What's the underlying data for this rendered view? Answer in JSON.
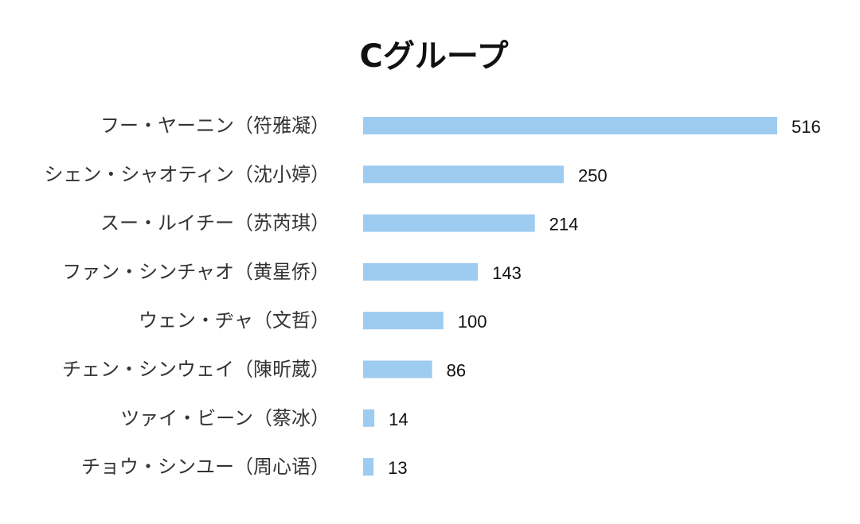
{
  "chart_data": {
    "type": "bar",
    "orientation": "horizontal",
    "title": "Cグループ",
    "categories": [
      "フー・ヤーニン（符雅凝）",
      "シェン・シャオティン（沈小婷）",
      "スー・ルイチー（苏芮琪）",
      "ファン・シンチャオ（黄星侨）",
      "ウェン・ヂャ（文哲）",
      "チェン・シンウェイ（陳昕葳）",
      "ツァイ・ビーン（蔡冰）",
      "チョウ・シンユー（周心语）"
    ],
    "values": [
      516,
      250,
      214,
      143,
      100,
      86,
      14,
      13
    ],
    "value_labels": [
      "516",
      "250",
      "214",
      "143",
      "100",
      "86",
      "14",
      "13"
    ],
    "bar_color": "#9ecbf0",
    "grid": false,
    "legend": "none"
  }
}
